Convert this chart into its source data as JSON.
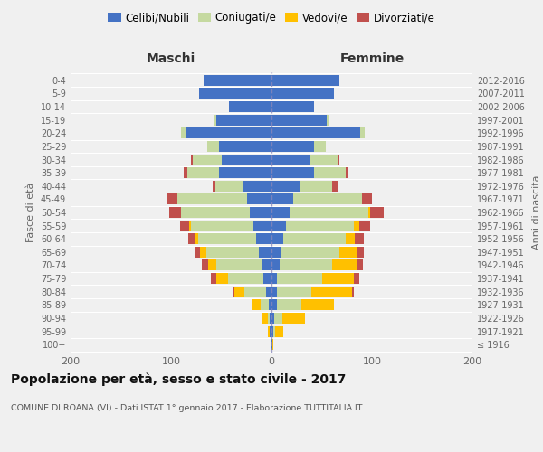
{
  "title": "Popolazione per età, sesso e stato civile - 2017",
  "subtitle": "COMUNE DI ROANA (VI) - Dati ISTAT 1° gennaio 2017 - Elaborazione TUTTITALIA.IT",
  "left_header": "Maschi",
  "right_header": "Femmine",
  "ylabel_left": "Fasce di età",
  "ylabel_right": "Anni di nascita",
  "xlim": 200,
  "age_groups": [
    "100+",
    "95-99",
    "90-94",
    "85-89",
    "80-84",
    "75-79",
    "70-74",
    "65-69",
    "60-64",
    "55-59",
    "50-54",
    "45-49",
    "40-44",
    "35-39",
    "30-34",
    "25-29",
    "20-24",
    "15-19",
    "10-14",
    "5-9",
    "0-4"
  ],
  "birth_years": [
    "≤ 1916",
    "1917-1921",
    "1922-1926",
    "1927-1931",
    "1932-1936",
    "1937-1941",
    "1942-1946",
    "1947-1951",
    "1952-1956",
    "1957-1961",
    "1962-1966",
    "1967-1971",
    "1972-1976",
    "1977-1981",
    "1982-1986",
    "1987-1991",
    "1992-1996",
    "1997-2001",
    "2002-2006",
    "2007-2011",
    "2012-2016"
  ],
  "colors": {
    "celibi": "#4472c4",
    "coniugati": "#c5d9a0",
    "vedovi": "#ffc000",
    "divorziati": "#c0504d"
  },
  "legend_labels": [
    "Celibi/Nubili",
    "Coniugati/e",
    "Vedovi/e",
    "Divorziati/e"
  ],
  "maschi": {
    "celibi": [
      1,
      2,
      2,
      3,
      5,
      8,
      10,
      13,
      15,
      18,
      22,
      24,
      28,
      52,
      50,
      52,
      85,
      55,
      42,
      72,
      68
    ],
    "coniugati": [
      0,
      0,
      2,
      8,
      22,
      35,
      45,
      52,
      58,
      62,
      68,
      70,
      28,
      32,
      28,
      12,
      5,
      2,
      0,
      0,
      0
    ],
    "vedovi": [
      0,
      2,
      5,
      8,
      10,
      12,
      8,
      6,
      3,
      2,
      0,
      0,
      0,
      0,
      0,
      0,
      0,
      0,
      0,
      0,
      0
    ],
    "divorziati": [
      0,
      0,
      0,
      0,
      2,
      5,
      6,
      6,
      7,
      9,
      12,
      10,
      3,
      3,
      2,
      0,
      0,
      0,
      0,
      0,
      0
    ]
  },
  "femmine": {
    "nubili": [
      1,
      2,
      3,
      5,
      5,
      5,
      8,
      10,
      12,
      14,
      18,
      22,
      28,
      42,
      38,
      42,
      88,
      55,
      42,
      62,
      68
    ],
    "coniugate": [
      0,
      2,
      8,
      25,
      35,
      45,
      52,
      58,
      62,
      68,
      78,
      68,
      32,
      32,
      28,
      12,
      5,
      2,
      0,
      0,
      0
    ],
    "vedove": [
      1,
      8,
      22,
      32,
      40,
      32,
      25,
      18,
      9,
      5,
      2,
      0,
      0,
      0,
      0,
      0,
      0,
      0,
      0,
      0,
      0
    ],
    "divorziate": [
      0,
      0,
      0,
      0,
      2,
      5,
      6,
      6,
      9,
      11,
      14,
      10,
      6,
      3,
      2,
      0,
      0,
      0,
      0,
      0,
      0
    ]
  },
  "background_color": "#f0f0f0",
  "bar_height": 0.82
}
